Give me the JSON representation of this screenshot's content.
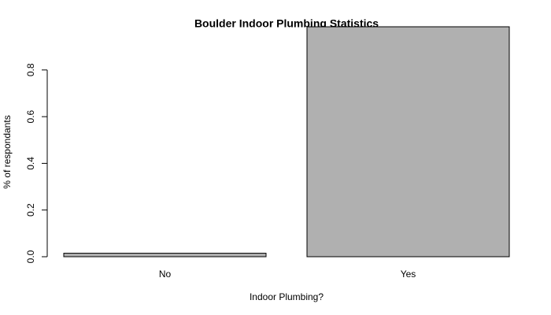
{
  "chart_data": {
    "type": "bar",
    "title": "Boulder Indoor Plumbing Statistics",
    "x_label": "Indoor Plumbing?",
    "y_label": "% of respondants",
    "categories": [
      "No",
      "Yes"
    ],
    "values": [
      0.015,
      0.985
    ],
    "color": "#b0b0b0",
    "ylim": [
      0,
      0.985
    ],
    "yticks": [
      {
        "value": 0,
        "label": "0.0"
      },
      0.2,
      0.4,
      0.6,
      0.8
    ],
    "grid": false
  }
}
